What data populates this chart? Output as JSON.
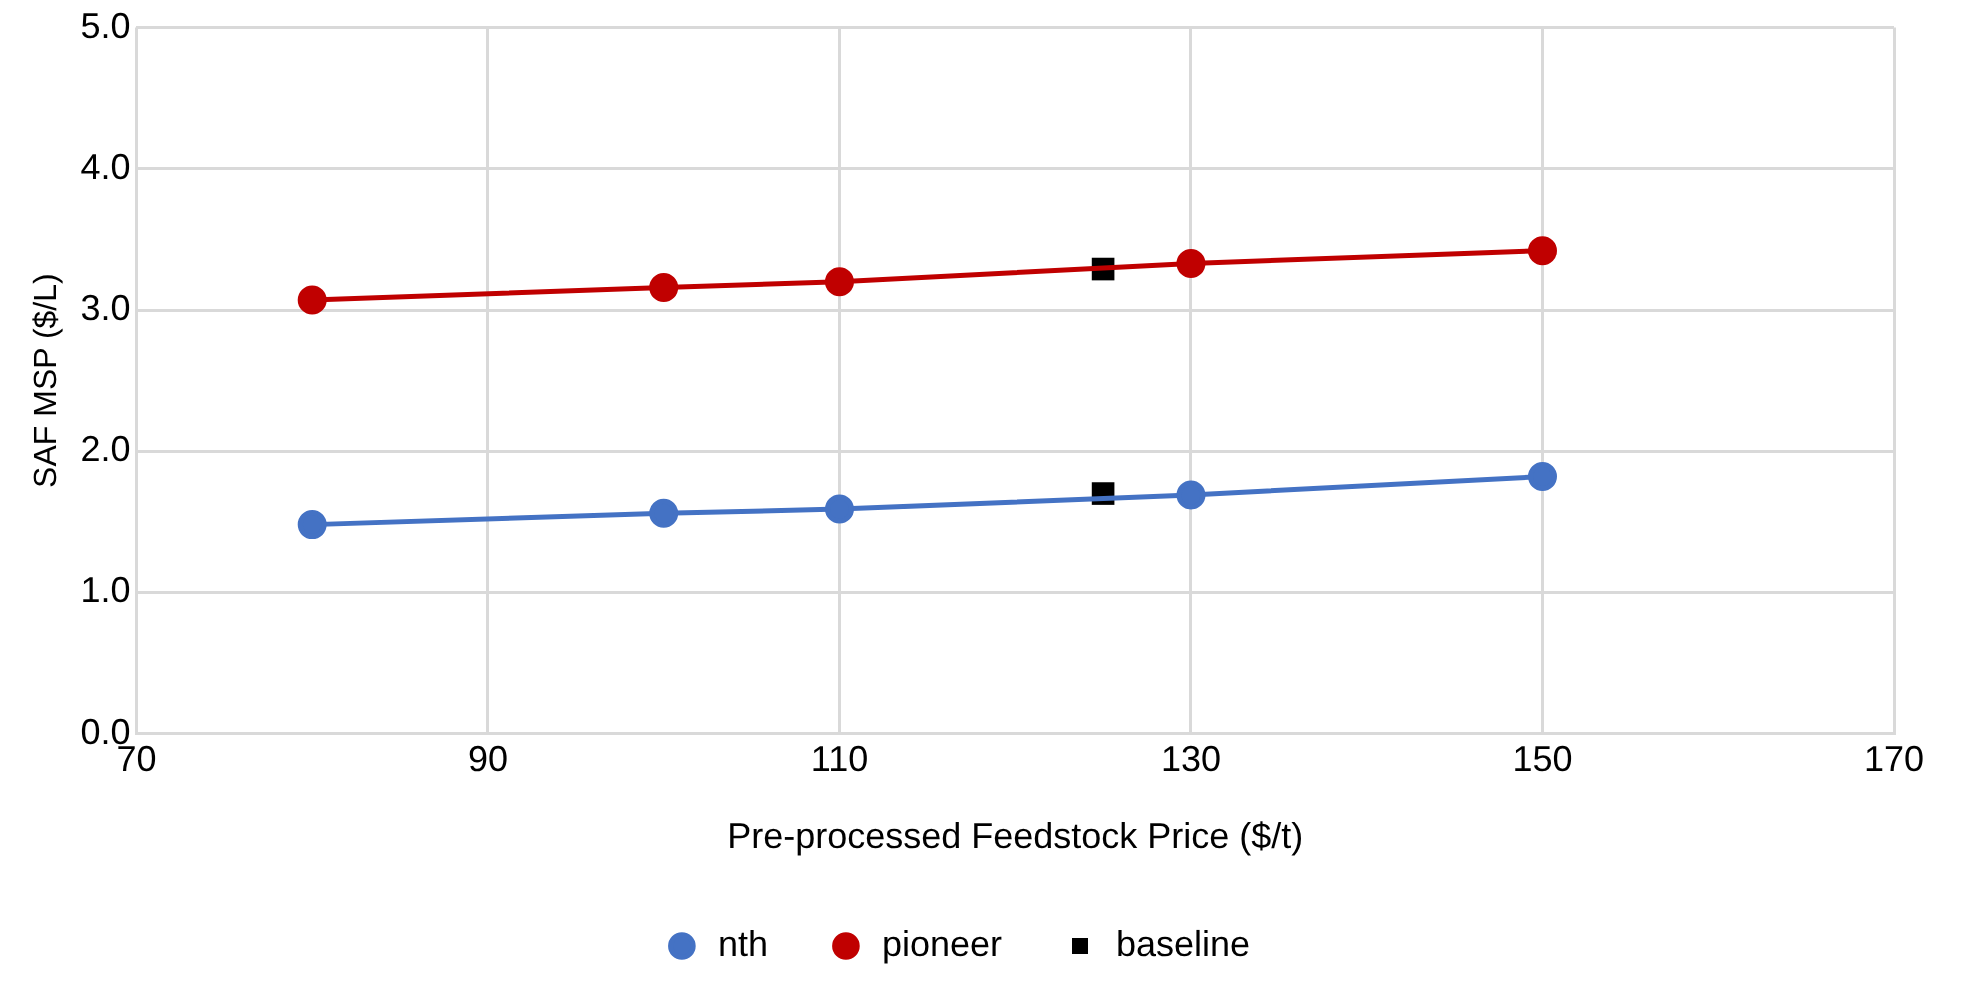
{
  "chart_data": {
    "type": "line",
    "xlabel": "Pre-processed Feedstock Price ($/t)",
    "ylabel": "SAF MSP ($/L)",
    "xlim": [
      70,
      170
    ],
    "xticks": [
      70,
      90,
      110,
      130,
      150,
      170
    ],
    "ylim": [
      0,
      5
    ],
    "yticks": [
      {
        "value": 0,
        "label": "0.0"
      },
      {
        "value": 1,
        "label": "1.0"
      },
      {
        "value": 2,
        "label": "2.0"
      },
      {
        "value": 3,
        "label": "3.0"
      },
      {
        "value": 4,
        "label": "4.0"
      },
      {
        "value": 5,
        "label": "5.0"
      }
    ],
    "grid": true,
    "legend": "bottom",
    "series": [
      {
        "name": "nth",
        "marker": "circle",
        "color": "#4472c4",
        "x": [
          80,
          100,
          110,
          130,
          150
        ],
        "values": [
          1.48,
          1.56,
          1.59,
          1.69,
          1.82
        ]
      },
      {
        "name": "pioneer",
        "marker": "circle",
        "color": "#c00000",
        "x": [
          80,
          100,
          110,
          130,
          150
        ],
        "values": [
          3.07,
          3.16,
          3.2,
          3.33,
          3.42
        ]
      },
      {
        "name": "baseline",
        "type": "scatter",
        "marker": "square",
        "color": "#000000",
        "x": [
          125,
          125
        ],
        "values": [
          3.29,
          1.7
        ]
      }
    ]
  }
}
